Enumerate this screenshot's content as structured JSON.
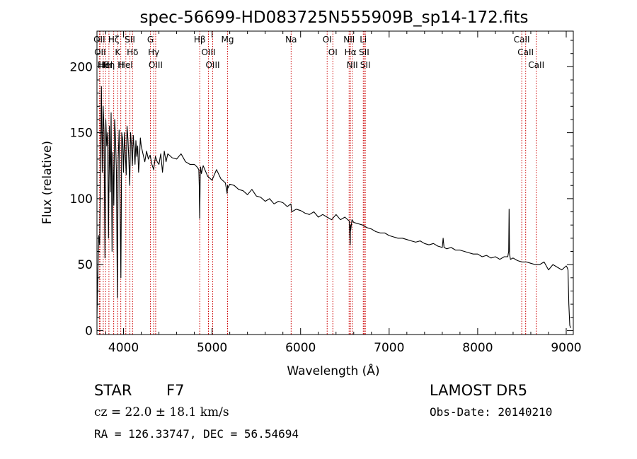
{
  "chart_data": {
    "type": "line",
    "title": "spec-56699-HD083725N555909B_sp14-172.fits",
    "xlabel": "Wavelength (Å)",
    "ylabel": "Flux (relative)",
    "xlim": [
      3700,
      9080
    ],
    "ylim": [
      -3,
      227
    ],
    "xticks": [
      4000,
      5000,
      6000,
      7000,
      8000,
      9000
    ],
    "yticks": [
      0,
      50,
      100,
      150,
      200
    ],
    "grid": false,
    "line_color": "#000000",
    "marker_color": "#cc0000",
    "series": [
      {
        "x": [
          3700,
          3710,
          3720,
          3730,
          3740,
          3750,
          3760,
          3770,
          3780,
          3790,
          3800,
          3810,
          3820,
          3830,
          3840,
          3850,
          3860,
          3870,
          3880,
          3890,
          3900,
          3910,
          3920,
          3930,
          3940,
          3950,
          3960,
          3970,
          3980,
          3990,
          4000,
          4010,
          4020,
          4030,
          4040,
          4050,
          4060,
          4070,
          4080,
          4090,
          4100,
          4110,
          4120,
          4130,
          4140,
          4150,
          4160,
          4170,
          4180,
          4190,
          4200,
          4220,
          4240,
          4260,
          4280,
          4300,
          4320,
          4340,
          4360,
          4380,
          4400,
          4420,
          4440,
          4460,
          4480,
          4500,
          4550,
          4600,
          4650,
          4700,
          4750,
          4800,
          4830,
          4850,
          4855,
          4861,
          4866,
          4870,
          4880,
          4900,
          4950,
          5000,
          5050,
          5100,
          5150,
          5170,
          5175,
          5180,
          5200,
          5250,
          5300,
          5350,
          5400,
          5450,
          5500,
          5550,
          5600,
          5650,
          5700,
          5750,
          5800,
          5850,
          5890,
          5900,
          5950,
          6000,
          6050,
          6100,
          6150,
          6200,
          6250,
          6300,
          6350,
          6400,
          6450,
          6500,
          6550,
          6560,
          6563,
          6566,
          6580,
          6600,
          6650,
          6700,
          6750,
          6800,
          6850,
          6900,
          6950,
          7000,
          7050,
          7100,
          7150,
          7200,
          7250,
          7300,
          7350,
          7400,
          7450,
          7500,
          7550,
          7600,
          7610,
          7620,
          7650,
          7700,
          7750,
          7800,
          7850,
          7900,
          7950,
          8000,
          8050,
          8100,
          8150,
          8200,
          8250,
          8300,
          8340,
          8350,
          8355,
          8360,
          8370,
          8400,
          8450,
          8500,
          8550,
          8600,
          8650,
          8700,
          8750,
          8800,
          8850,
          8900,
          8950,
          9000,
          9010,
          9020,
          9030,
          9040,
          9050
        ],
        "y": [
          10,
          45,
          72,
          65,
          118,
          185,
          120,
          170,
          150,
          55,
          160,
          140,
          150,
          70,
          155,
          105,
          165,
          60,
          135,
          95,
          160,
          145,
          120,
          25,
          130,
          152,
          100,
          40,
          150,
          145,
          120,
          150,
          135,
          118,
          155,
          145,
          130,
          110,
          150,
          140,
          125,
          148,
          138,
          126,
          144,
          132,
          140,
          120,
          130,
          146,
          140,
          134,
          128,
          136,
          130,
          133,
          126,
          122,
          132,
          128,
          126,
          134,
          120,
          136,
          128,
          134,
          131,
          130,
          134,
          128,
          126,
          126,
          124,
          122,
          110,
          85,
          118,
          124,
          119,
          125,
          117,
          114,
          122,
          115,
          112,
          104,
          110,
          108,
          111,
          110,
          107,
          106,
          103,
          107,
          102,
          101,
          98,
          100,
          96,
          98,
          97,
          94,
          96,
          90,
          92,
          91,
          89,
          88,
          90,
          86,
          88,
          86,
          84,
          88,
          84,
          86,
          83,
          65,
          80,
          76,
          84,
          82,
          81,
          80,
          78,
          77,
          75,
          74,
          74,
          72,
          71,
          70,
          70,
          69,
          68,
          67,
          68,
          66,
          65,
          66,
          64,
          63,
          70,
          63,
          62,
          63,
          61,
          61,
          60,
          59,
          58,
          58,
          56,
          57,
          55,
          56,
          54,
          56,
          56,
          60,
          92,
          58,
          54,
          55,
          53,
          52,
          52,
          51,
          50,
          50,
          52,
          46,
          50,
          48,
          46,
          49,
          48,
          46,
          20,
          4,
          2
        ]
      }
    ],
    "line_markers": [
      {
        "wl": 3727,
        "label": "OII"
      },
      {
        "wl": 3735,
        "label": "OII"
      },
      {
        "wl": 3771,
        "label": "Hθ"
      },
      {
        "wl": 3798,
        "label": "Hel"
      },
      {
        "wl": 3835,
        "label": "Hη"
      },
      {
        "wl": 3889,
        "label": "Hζ"
      },
      {
        "wl": 3934,
        "label": "K"
      },
      {
        "wl": 3969,
        "label": "H"
      },
      {
        "wl": 4026,
        "label": "Hel"
      },
      {
        "wl": 4072,
        "label": "SII"
      },
      {
        "wl": 4102,
        "label": "Hδ"
      },
      {
        "wl": 4304,
        "label": "G"
      },
      {
        "wl": 4341,
        "label": "Hγ"
      },
      {
        "wl": 4363,
        "label": "OIII"
      },
      {
        "wl": 4861,
        "label": "Hβ"
      },
      {
        "wl": 4959,
        "label": "OIII"
      },
      {
        "wl": 5007,
        "label": "OIII"
      },
      {
        "wl": 5175,
        "label": "Mg"
      },
      {
        "wl": 5893,
        "label": "Na"
      },
      {
        "wl": 6300,
        "label": "OI"
      },
      {
        "wl": 6364,
        "label": "OI"
      },
      {
        "wl": 6548,
        "label": "NII"
      },
      {
        "wl": 6563,
        "label": "Hα"
      },
      {
        "wl": 6583,
        "label": "NII"
      },
      {
        "wl": 6708,
        "label": "Li"
      },
      {
        "wl": 6717,
        "label": "SII"
      },
      {
        "wl": 6731,
        "label": "SII"
      },
      {
        "wl": 8498,
        "label": "CaII"
      },
      {
        "wl": 8542,
        "label": "CaII"
      },
      {
        "wl": 8662,
        "label": "CaII"
      }
    ]
  },
  "footer": {
    "object_class": "STAR",
    "subclass": "F7",
    "redshift": "cz = 22.0 ± 18.1 km/s",
    "coords": "RA = 126.33747, DEC =  56.54694",
    "survey": "LAMOST  DR5",
    "obs_date": "Obs-Date: 20140210"
  }
}
